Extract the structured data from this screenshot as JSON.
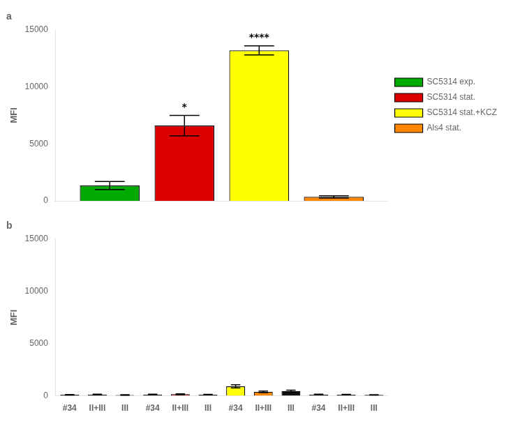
{
  "chart_data": [
    {
      "type": "bar",
      "title": "a",
      "categories": [
        null
      ],
      "series": [
        {
          "name": "SC5314 exp.",
          "color": "#00aa00",
          "values": [
            1350
          ],
          "errors": [
            350
          ]
        },
        {
          "name": "SC5314 stat.",
          "color": "#dd0000",
          "values": [
            6600
          ],
          "errors": [
            900
          ]
        },
        {
          "name": "SC5314 stat.+KCZ",
          "color": "#ffff00",
          "values": [
            13200
          ],
          "errors": [
            400
          ]
        },
        {
          "name": "Als4 stat.",
          "color": "#ff8800",
          "values": [
            350
          ],
          "errors": [
            100
          ]
        }
      ],
      "annotations": [
        null,
        "*",
        "****",
        null
      ],
      "ylabel": "MFI",
      "ylim": [
        0,
        15000
      ],
      "yticks": [
        0,
        5000,
        10000,
        15000
      ],
      "grid": false,
      "legend": "right",
      "tick_labels": "y"
    },
    {
      "type": "bar",
      "title": "b",
      "categories": [
        "#34",
        "II+III",
        "III",
        "#34",
        "II+III",
        "III",
        "#34",
        "II+III",
        "III",
        "#34",
        "II+III",
        "III"
      ],
      "values": [
        100,
        120,
        80,
        130,
        150,
        110,
        900,
        380,
        450,
        130,
        110,
        90
      ],
      "errors": [
        30,
        35,
        20,
        30,
        40,
        25,
        150,
        80,
        90,
        30,
        25,
        20
      ],
      "colors": [
        "#111111",
        "#111111",
        "#111111",
        "#111111",
        "#dd0000",
        "#111111",
        "#ffff00",
        "#ff8800",
        "#111111",
        "#111111",
        "#111111",
        "#111111"
      ],
      "ylabel": "MFI",
      "ylim": [
        0,
        15000
      ],
      "yticks": [
        0,
        5000,
        10000,
        15000
      ],
      "grid": false
    }
  ]
}
